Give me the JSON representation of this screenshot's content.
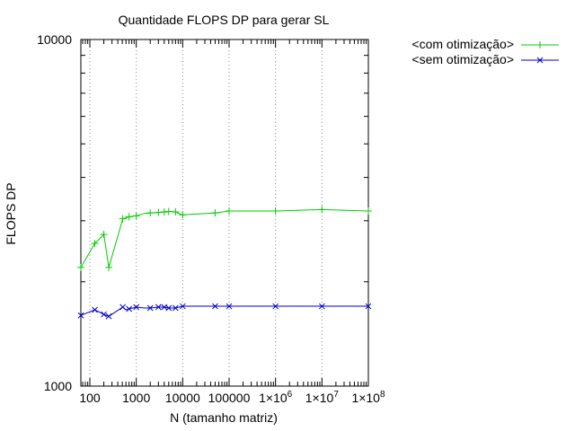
{
  "chart_data": {
    "type": "line",
    "title": "Quantidade FLOPS DP para gerar SL",
    "xlabel": "N (tamanho matriz)",
    "ylabel": "FLOPS DP",
    "x_scale": "log",
    "y_scale": "log",
    "xlim": [
      64,
      100000000
    ],
    "ylim": [
      1000,
      10000
    ],
    "grid": "x-only dotted",
    "legend_position": "top-right outside",
    "x_ticks": [
      {
        "value": 100,
        "label": "100"
      },
      {
        "value": 1000,
        "label": "1000"
      },
      {
        "value": 10000,
        "label": "10000"
      },
      {
        "value": 100000,
        "label": "100000"
      },
      {
        "value": 1000000,
        "label": "1×10",
        "sup": "6"
      },
      {
        "value": 10000000,
        "label": "1×10",
        "sup": "7"
      },
      {
        "value": 100000000,
        "label": "1×10",
        "sup": "8"
      }
    ],
    "y_ticks": [
      {
        "value": 1000,
        "label": "1000"
      },
      {
        "value": 10000,
        "label": "10000"
      }
    ],
    "series": [
      {
        "name": "<com otimização>",
        "color": "#00cc00",
        "marker": "plus",
        "points": [
          [
            64,
            2200
          ],
          [
            128,
            2580
          ],
          [
            200,
            2740
          ],
          [
            256,
            2200
          ],
          [
            512,
            3040
          ],
          [
            600,
            3060
          ],
          [
            700,
            3080
          ],
          [
            1000,
            3100
          ],
          [
            1500,
            3150
          ],
          [
            2000,
            3160
          ],
          [
            3000,
            3170
          ],
          [
            4000,
            3180
          ],
          [
            5000,
            3190
          ],
          [
            6000,
            3190
          ],
          [
            7000,
            3180
          ],
          [
            10000,
            3120
          ],
          [
            50000,
            3160
          ],
          [
            100000,
            3200
          ],
          [
            1000000,
            3200
          ],
          [
            10000000,
            3230
          ],
          [
            100000000,
            3200
          ]
        ],
        "marker_x": [
          64,
          128,
          200,
          256,
          512,
          700,
          1000,
          2000,
          3000,
          4000,
          5000,
          7000,
          10000,
          50000,
          100000,
          1000000,
          10000000,
          100000000
        ]
      },
      {
        "name": "<sem otimização>",
        "color": "#0000cc",
        "marker": "x",
        "points": [
          [
            64,
            1600
          ],
          [
            128,
            1660
          ],
          [
            200,
            1610
          ],
          [
            256,
            1590
          ],
          [
            512,
            1690
          ],
          [
            600,
            1660
          ],
          [
            700,
            1670
          ],
          [
            1000,
            1690
          ],
          [
            1500,
            1680
          ],
          [
            2000,
            1680
          ],
          [
            3000,
            1690
          ],
          [
            4000,
            1690
          ],
          [
            5000,
            1680
          ],
          [
            6000,
            1680
          ],
          [
            7000,
            1680
          ],
          [
            10000,
            1700
          ],
          [
            50000,
            1700
          ],
          [
            100000,
            1700
          ],
          [
            1000000,
            1700
          ],
          [
            10000000,
            1700
          ],
          [
            100000000,
            1700
          ]
        ],
        "marker_x": [
          64,
          128,
          200,
          256,
          512,
          700,
          1000,
          2000,
          3000,
          4000,
          5000,
          7000,
          10000,
          50000,
          100000,
          1000000,
          10000000,
          100000000
        ]
      }
    ]
  }
}
